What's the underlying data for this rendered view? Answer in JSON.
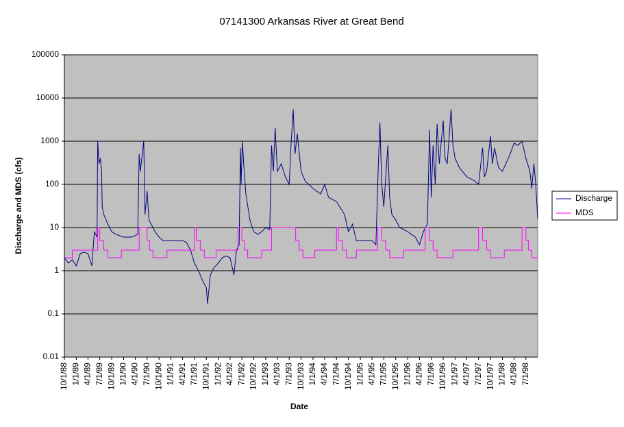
{
  "chart_data": {
    "type": "line",
    "title": "07141300 Arkansas River at Great Bend",
    "x_label": "Date",
    "y_label": "Discharge and MDS (cfs)",
    "log_scale_y": true,
    "grid": true,
    "legend": "right",
    "ylim": [
      0.01,
      100000
    ],
    "yticks": [
      0.01,
      0.1,
      1,
      10,
      100,
      1000,
      10000,
      100000
    ],
    "xlim": [
      "10/1/88",
      "9/30/98"
    ],
    "xticks": [
      "10/1/88",
      "1/1/89",
      "4/1/89",
      "7/1/89",
      "10/1/89",
      "1/1/90",
      "4/1/90",
      "7/1/90",
      "10/1/90",
      "1/1/91",
      "4/1/91",
      "7/1/91",
      "10/1/91",
      "1/1/92",
      "4/1/92",
      "7/1/92",
      "10/1/92",
      "1/1/93",
      "4/1/93",
      "7/1/93",
      "10/1/93",
      "1/1/94",
      "4/1/94",
      "7/1/94",
      "10/1/94",
      "1/1/95",
      "4/1/95",
      "7/1/95",
      "10/1/95",
      "1/1/96",
      "4/1/96",
      "7/1/96",
      "10/1/96",
      "1/1/97",
      "4/1/97",
      "7/1/97",
      "10/1/97",
      "1/1/98",
      "4/1/98",
      "7/1/98"
    ],
    "series": [
      {
        "name": "Discharge",
        "color": "#000080",
        "x": [
          "10/1/88",
          "11/1/88",
          "12/1/88",
          "1/1/89",
          "2/1/89",
          "3/1/89",
          "4/1/89",
          "5/1/89",
          "5/20/89",
          "6/10/89",
          "6/15/89",
          "6/25/89",
          "7/5/89",
          "7/15/89",
          "7/20/89",
          "8/1/89",
          "9/1/89",
          "10/1/89",
          "11/1/89",
          "1/1/90",
          "3/1/90",
          "4/1/90",
          "4/20/90",
          "5/1/90",
          "5/10/90",
          "6/5/90",
          "6/15/90",
          "7/1/90",
          "7/15/90",
          "8/1/90",
          "9/1/90",
          "10/1/90",
          "11/1/90",
          "1/1/91",
          "4/1/91",
          "5/1/91",
          "6/1/91",
          "7/1/91",
          "8/1/91",
          "9/1/91",
          "10/1/91",
          "10/10/91",
          "11/1/91",
          "12/1/91",
          "1/1/92",
          "2/1/92",
          "3/1/92",
          "4/1/92",
          "5/1/92",
          "5/20/92",
          "6/10/92",
          "6/20/92",
          "6/25/92",
          "7/5/92",
          "7/15/92",
          "8/1/92",
          "9/1/92",
          "10/1/92",
          "11/1/92",
          "12/1/92",
          "1/1/93",
          "2/1/93",
          "2/15/93",
          "3/1/93",
          "3/15/93",
          "4/1/93",
          "5/1/93",
          "6/1/93",
          "7/1/93",
          "7/15/93",
          "8/1/93",
          "8/15/93",
          "9/1/93",
          "10/1/93",
          "11/1/93",
          "1/1/94",
          "3/1/94",
          "4/1/94",
          "5/1/94",
          "7/1/94",
          "9/1/94",
          "10/1/94",
          "11/1/94",
          "12/1/94",
          "2/1/95",
          "4/1/95",
          "5/1/95",
          "5/20/95",
          "6/1/95",
          "6/15/95",
          "7/1/95",
          "8/1/95",
          "8/15/95",
          "9/1/95",
          "10/1/95",
          "11/1/95",
          "1/1/96",
          "3/1/96",
          "4/1/96",
          "5/1/96",
          "6/1/96",
          "6/18/96",
          "7/1/96",
          "7/15/96",
          "8/1/96",
          "8/15/96",
          "9/1/96",
          "10/1/96",
          "10/15/96",
          "11/1/96",
          "12/1/96",
          "12/15/96",
          "1/1/97",
          "2/1/97",
          "4/1/97",
          "6/1/97",
          "7/1/97",
          "8/1/97",
          "8/15/97",
          "9/1/97",
          "10/1/97",
          "10/15/97",
          "11/1/97",
          "12/1/97",
          "1/1/98",
          "3/1/98",
          "4/1/98",
          "5/1/98",
          "6/1/98",
          "7/1/98",
          "8/1/98",
          "8/15/98",
          "9/1/98",
          "9/15/98",
          "9/30/98"
        ],
        "values": [
          2,
          1.5,
          1.8,
          1.3,
          2.5,
          2.7,
          2.5,
          1.3,
          8,
          6,
          1000,
          300,
          400,
          200,
          30,
          20,
          12,
          8,
          7,
          6,
          6,
          6.5,
          7,
          500,
          200,
          1000,
          20,
          70,
          15,
          12,
          8,
          6,
          5,
          5,
          5,
          4.5,
          3,
          1.5,
          1,
          0.6,
          0.4,
          0.17,
          0.8,
          1.2,
          1.5,
          2,
          2.2,
          2,
          0.8,
          3,
          4,
          700,
          100,
          1000,
          300,
          60,
          15,
          8,
          7,
          8,
          10,
          9,
          800,
          200,
          2000,
          200,
          300,
          150,
          100,
          800,
          5500,
          500,
          1500,
          200,
          120,
          80,
          60,
          100,
          50,
          40,
          20,
          8,
          12,
          5,
          5,
          5,
          4,
          300,
          2700,
          100,
          30,
          800,
          50,
          20,
          15,
          10,
          8,
          6,
          4,
          8,
          12,
          1800,
          50,
          800,
          100,
          2500,
          300,
          3000,
          400,
          300,
          5500,
          800,
          400,
          250,
          150,
          120,
          100,
          700,
          150,
          200,
          1300,
          300,
          700,
          250,
          200,
          500,
          900,
          800,
          1000,
          400,
          200,
          80,
          300,
          100,
          16
        ]
      },
      {
        "name": "MDS",
        "color": "#ff00ff",
        "step": "post",
        "x": [
          "10/1/88",
          "12/1/88",
          "6/15/89",
          "7/1/89",
          "8/1/89",
          "9/1/89",
          "12/15/89",
          "5/1/90",
          "7/1/90",
          "7/20/90",
          "8/15/90",
          "12/1/90",
          "7/1/91",
          "7/15/91",
          "8/15/91",
          "9/15/91",
          "12/15/91",
          "6/1/92",
          "7/1/92",
          "7/20/92",
          "8/15/92",
          "12/1/92",
          "2/15/93",
          "8/20/93",
          "9/15/93",
          "10/15/93",
          "1/15/94",
          "7/1/94",
          "7/15/94",
          "8/15/94",
          "9/15/94",
          "12/1/94",
          "5/15/95",
          "6/15/95",
          "7/15/95",
          "8/15/95",
          "12/1/95",
          "5/15/96",
          "6/15/96",
          "7/15/96",
          "8/15/96",
          "12/15/96",
          "7/1/97",
          "8/1/97",
          "9/1/97",
          "10/1/97",
          "1/15/98",
          "6/1/98",
          "7/1/98",
          "7/20/98",
          "8/15/98",
          "9/30/98"
        ],
        "values": [
          2,
          3,
          10,
          5,
          3,
          2,
          3,
          10,
          5,
          3,
          2,
          3,
          10,
          5,
          3,
          2,
          3,
          10,
          5,
          3,
          2,
          3,
          10,
          5,
          3,
          2,
          3,
          10,
          5,
          3,
          2,
          3,
          10,
          5,
          3,
          2,
          3,
          10,
          5,
          3,
          2,
          3,
          10,
          5,
          3,
          2,
          3,
          10,
          5,
          3,
          2,
          2
        ]
      }
    ]
  }
}
